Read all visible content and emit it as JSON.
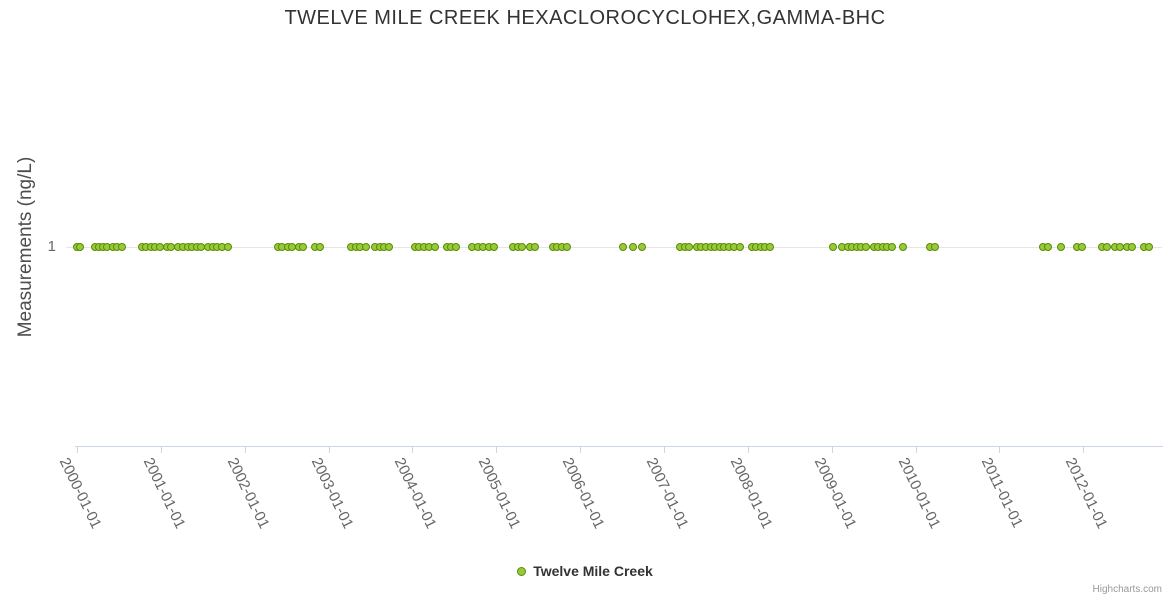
{
  "title": "TWELVE MILE CREEK HEXACLOROCYCLOHEX,GAMMA-BHC",
  "y_axis": {
    "title": "Measurements (ng/L)",
    "tick_label": "1"
  },
  "x_axis": {
    "tick_labels": [
      "2000-01-01",
      "2001-01-01",
      "2002-01-01",
      "2003-01-01",
      "2004-01-01",
      "2005-01-01",
      "2006-01-01",
      "2007-01-01",
      "2008-01-01",
      "2009-01-01",
      "2010-01-01",
      "2011-01-01",
      "2012-01-01"
    ]
  },
  "legend": {
    "label": "Twelve Mile Creek"
  },
  "credits": "Highcharts.com",
  "colors": {
    "point_fill": "#96ca3b",
    "point_border": "#5d8a00",
    "axis_line": "#ccd6eb",
    "grid_line": "#e6e6e6",
    "title_text": "#333333",
    "tick_text": "#666666"
  },
  "chart_data": {
    "type": "scatter",
    "title": "TWELVE MILE CREEK HEXACLOROCYCLOHEX,GAMMA-BHC",
    "xlabel": "",
    "ylabel": "Measurements (ng/L)",
    "xlim": [
      "2000-01-01",
      "2012-12-05"
    ],
    "yticks": [
      1
    ],
    "grid": "y-gridline at 1 only",
    "legend_position": "bottom-center",
    "series": [
      {
        "name": "Twelve Mile Creek",
        "y_value_all_points": 1,
        "dates": [
          "2000-01-01",
          "2000-01-15",
          "2000-03-18",
          "2000-04-05",
          "2000-04-23",
          "2000-05-08",
          "2000-06-06",
          "2000-06-21",
          "2000-07-13",
          "2000-10-09",
          "2000-10-27",
          "2000-11-18",
          "2000-12-06",
          "2000-12-28",
          "2001-01-26",
          "2001-02-13",
          "2001-03-14",
          "2001-04-05",
          "2001-04-27",
          "2001-05-15",
          "2001-06-06",
          "2001-06-24",
          "2001-07-23",
          "2001-08-14",
          "2001-09-01",
          "2001-09-23",
          "2001-10-19",
          "2002-05-23",
          "2002-06-10",
          "2002-07-05",
          "2002-07-23",
          "2002-08-25",
          "2002-09-12",
          "2002-11-03",
          "2002-11-25",
          "2003-04-08",
          "2003-04-30",
          "2003-05-18",
          "2003-06-13",
          "2003-07-19",
          "2003-08-10",
          "2003-08-28",
          "2003-09-19",
          "2004-01-11",
          "2004-01-29",
          "2004-02-20",
          "2004-03-13",
          "2004-04-08",
          "2004-05-29",
          "2004-06-16",
          "2004-07-08",
          "2004-09-19",
          "2004-10-11",
          "2004-11-02",
          "2004-12-01",
          "2004-12-23",
          "2005-03-13",
          "2005-04-04",
          "2005-04-22",
          "2005-05-25",
          "2005-06-16",
          "2005-09-05",
          "2005-09-23",
          "2005-10-15",
          "2005-11-06",
          "2006-07-05",
          "2006-08-18",
          "2006-09-27",
          "2007-03-10",
          "2007-04-01",
          "2007-04-19",
          "2007-05-22",
          "2007-06-10",
          "2007-07-02",
          "2007-07-24",
          "2007-08-11",
          "2007-09-02",
          "2007-09-20",
          "2007-10-12",
          "2007-10-30",
          "2007-11-28",
          "2008-01-19",
          "2008-02-06",
          "2008-02-28",
          "2008-03-17",
          "2008-04-08",
          "2009-01-08",
          "2009-02-17",
          "2009-03-11",
          "2009-03-29",
          "2009-04-20",
          "2009-05-08",
          "2009-05-30",
          "2009-07-02",
          "2009-07-20",
          "2009-08-11",
          "2009-08-29",
          "2009-09-20",
          "2009-11-06",
          "2010-03-03",
          "2010-03-25",
          "2011-07-09",
          "2011-07-31",
          "2011-09-27",
          "2011-12-02",
          "2011-12-24",
          "2012-03-21",
          "2012-04-12",
          "2012-05-18",
          "2012-06-09",
          "2012-07-08",
          "2012-07-30",
          "2012-09-20",
          "2012-10-12"
        ]
      }
    ]
  }
}
